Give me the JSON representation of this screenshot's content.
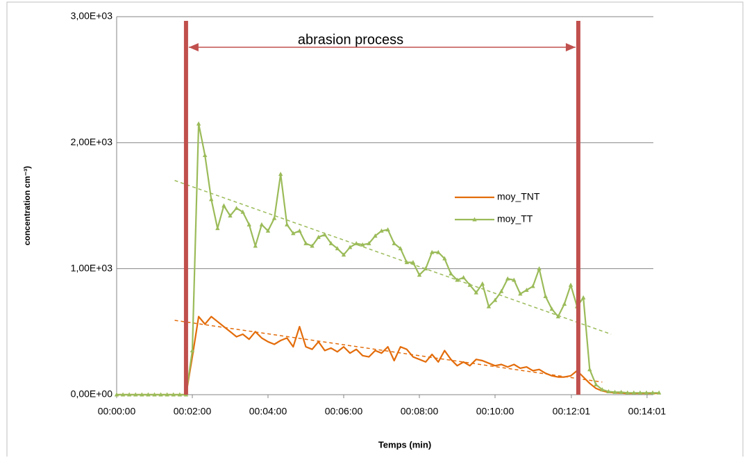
{
  "chart_data": {
    "type": "line",
    "annotation": "abrasion process",
    "event_lines": [
      110,
      732
    ],
    "event_color": "#c0504d",
    "x_label": "Temps (min)",
    "y_label": "concentration  cm⁻³)",
    "x": [
      0,
      10,
      20,
      30,
      40,
      50,
      60,
      70,
      80,
      90,
      100,
      110,
      120,
      130,
      140,
      150,
      160,
      170,
      180,
      190,
      200,
      210,
      220,
      230,
      240,
      250,
      260,
      270,
      280,
      290,
      300,
      310,
      320,
      330,
      340,
      350,
      360,
      370,
      380,
      390,
      400,
      410,
      420,
      430,
      440,
      450,
      460,
      470,
      480,
      490,
      500,
      510,
      520,
      530,
      540,
      550,
      560,
      570,
      580,
      590,
      600,
      610,
      620,
      630,
      640,
      650,
      660,
      670,
      680,
      690,
      700,
      710,
      720,
      730,
      740,
      750,
      760,
      770,
      780,
      790,
      800,
      810,
      820,
      830,
      840,
      850,
      860
    ],
    "series": [
      {
        "name": "moy_TNT",
        "color": "#e36c0a",
        "marker": "none",
        "values": [
          0,
          0,
          0,
          0,
          0,
          0,
          0,
          0,
          0,
          0,
          0,
          0,
          300,
          620,
          560,
          620,
          580,
          540,
          500,
          460,
          480,
          440,
          500,
          450,
          420,
          400,
          430,
          450,
          380,
          540,
          380,
          360,
          420,
          350,
          370,
          340,
          380,
          330,
          360,
          310,
          300,
          350,
          330,
          380,
          270,
          380,
          360,
          300,
          280,
          260,
          320,
          260,
          350,
          280,
          230,
          260,
          230,
          280,
          270,
          250,
          230,
          240,
          220,
          240,
          210,
          220,
          190,
          200,
          170,
          150,
          140,
          140,
          150,
          190,
          140,
          90,
          50,
          30,
          20,
          15,
          12,
          10,
          10,
          10,
          10,
          10,
          10
        ],
        "trend": {
          "x": [
            92,
            770
          ],
          "values": [
            590,
            100
          ]
        }
      },
      {
        "name": "moy_TT",
        "color": "#9bbb59",
        "marker": "triangle",
        "values": [
          0,
          0,
          0,
          0,
          0,
          0,
          0,
          0,
          0,
          0,
          0,
          0,
          350,
          2150,
          1900,
          1550,
          1320,
          1500,
          1420,
          1480,
          1450,
          1350,
          1180,
          1350,
          1300,
          1400,
          1750,
          1350,
          1280,
          1300,
          1200,
          1180,
          1250,
          1270,
          1200,
          1160,
          1110,
          1170,
          1200,
          1190,
          1200,
          1260,
          1300,
          1310,
          1200,
          1160,
          1050,
          1050,
          950,
          1000,
          1130,
          1130,
          1080,
          960,
          910,
          930,
          870,
          810,
          880,
          700,
          750,
          820,
          920,
          910,
          800,
          830,
          860,
          1000,
          780,
          680,
          620,
          720,
          870,
          700,
          770,
          200,
          80,
          40,
          25,
          20,
          20,
          15,
          15,
          15,
          15,
          15,
          15
        ],
        "trend": {
          "x": [
            92,
            784
          ],
          "values": [
            1700,
            480
          ]
        }
      }
    ],
    "xlim": [
      0,
      862
    ],
    "xticks": [
      {
        "value": 0,
        "label": "00:00:00"
      },
      {
        "value": 120,
        "label": "00:02:00"
      },
      {
        "value": 240,
        "label": "00:04:00"
      },
      {
        "value": 360,
        "label": "00:06:00"
      },
      {
        "value": 480,
        "label": "00:08:00"
      },
      {
        "value": 600,
        "label": "00:10:00"
      },
      {
        "value": 721,
        "label": "00:12:01"
      },
      {
        "value": 841,
        "label": "00:14:01"
      }
    ],
    "ylim": [
      0,
      3000
    ],
    "yticks": [
      {
        "value": 0,
        "label": "0,00E+00"
      },
      {
        "value": 1000,
        "label": "1,00E+03"
      },
      {
        "value": 2000,
        "label": "2,00E+03"
      },
      {
        "value": 3000,
        "label": "3,00E+03"
      }
    ],
    "grid": true
  }
}
